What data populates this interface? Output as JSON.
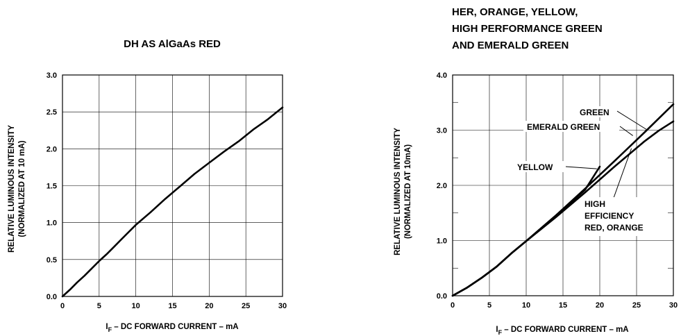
{
  "chart_data": [
    {
      "type": "line",
      "title": "DH AS AlGaAs RED",
      "xlabel": "I",
      "xlabel_sub": "F",
      "xlabel_rest": " – DC FORWARD CURRENT – mA",
      "ylabel_line1": "RELATIVE LUMINOUS INTENSITY",
      "ylabel_line2": "(NORMALIZED AT 10 mA)",
      "xlim": [
        0,
        30
      ],
      "ylim": [
        0,
        3.0
      ],
      "xticks": [
        0,
        5,
        10,
        15,
        20,
        25,
        30
      ],
      "xtick_labels": [
        "0",
        "5",
        "10",
        "15",
        "20",
        "25",
        "30"
      ],
      "yticks": [
        0,
        0.5,
        1.0,
        1.5,
        2.0,
        2.5,
        3.0
      ],
      "ytick_labels": [
        "0.0",
        "0.5",
        "1.0",
        "1.5",
        "2.0",
        "2.5",
        "3.0"
      ],
      "grid": true,
      "series": [
        {
          "x": [
            0,
            1,
            2,
            3,
            4,
            5,
            6,
            7,
            8,
            9,
            10,
            12,
            14,
            16,
            18,
            20,
            22,
            24,
            26,
            28,
            30
          ],
          "y": [
            0,
            0.09,
            0.19,
            0.28,
            0.38,
            0.48,
            0.57,
            0.67,
            0.77,
            0.87,
            0.97,
            1.14,
            1.32,
            1.49,
            1.66,
            1.81,
            1.96,
            2.1,
            2.26,
            2.4,
            2.56
          ]
        }
      ]
    },
    {
      "type": "line",
      "title_lines": [
        "HER, ORANGE, YELLOW,",
        "HIGH PERFORMANCE GREEN",
        "AND EMERALD GREEN"
      ],
      "xlabel": "I",
      "xlabel_sub": "F",
      "xlabel_rest": " – DC FORWARD CURRENT – mA",
      "ylabel_line1": "RELATIVE LUMINOUS INTENSITY",
      "ylabel_line2": "(NORMALIZED AT 10mA)",
      "xlim": [
        0,
        30
      ],
      "ylim": [
        0,
        4.0
      ],
      "xticks": [
        0,
        5,
        10,
        15,
        20,
        25,
        30
      ],
      "xtick_labels": [
        "0",
        "5",
        "10",
        "15",
        "20",
        "25",
        "30"
      ],
      "yticks": [
        0,
        1.0,
        2.0,
        3.0,
        4.0
      ],
      "ytick_labels": [
        "0.0",
        "1.0",
        "2.0",
        "3.0",
        "4.0"
      ],
      "minor_yticks": [
        0.5,
        1.5,
        2.5,
        3.5
      ],
      "grid": true,
      "series": [
        {
          "x": [
            0,
            2,
            4,
            6,
            8,
            10,
            14,
            18,
            22,
            26,
            30
          ],
          "y": [
            0,
            0.15,
            0.33,
            0.53,
            0.77,
            0.99,
            1.45,
            1.94,
            2.44,
            2.95,
            3.47
          ]
        },
        {
          "x": [
            0,
            2,
            4,
            6,
            8,
            10,
            14,
            18,
            22,
            26,
            28,
            30
          ],
          "y": [
            0,
            0.15,
            0.33,
            0.53,
            0.77,
            0.99,
            1.42,
            1.87,
            2.34,
            2.79,
            2.99,
            3.16
          ]
        },
        {
          "x": [
            0,
            2,
            4,
            6,
            8,
            10,
            12,
            14,
            16,
            18,
            20
          ],
          "y": [
            0,
            0.15,
            0.33,
            0.53,
            0.77,
            0.99,
            1.22,
            1.45,
            1.68,
            1.92,
            2.34
          ]
        }
      ],
      "annotations": [
        {
          "text": "GREEN",
          "target": [
            26.5,
            3.0
          ]
        },
        {
          "text": "EMERALD GREEN",
          "target": [
            24.5,
            2.9
          ]
        },
        {
          "text": "YELLOW",
          "target": [
            19.6,
            2.3
          ]
        },
        {
          "lines": [
            "HIGH",
            "EFFICIENCY",
            "RED, ORANGE"
          ],
          "target": [
            24.3,
            2.67
          ]
        }
      ]
    }
  ]
}
